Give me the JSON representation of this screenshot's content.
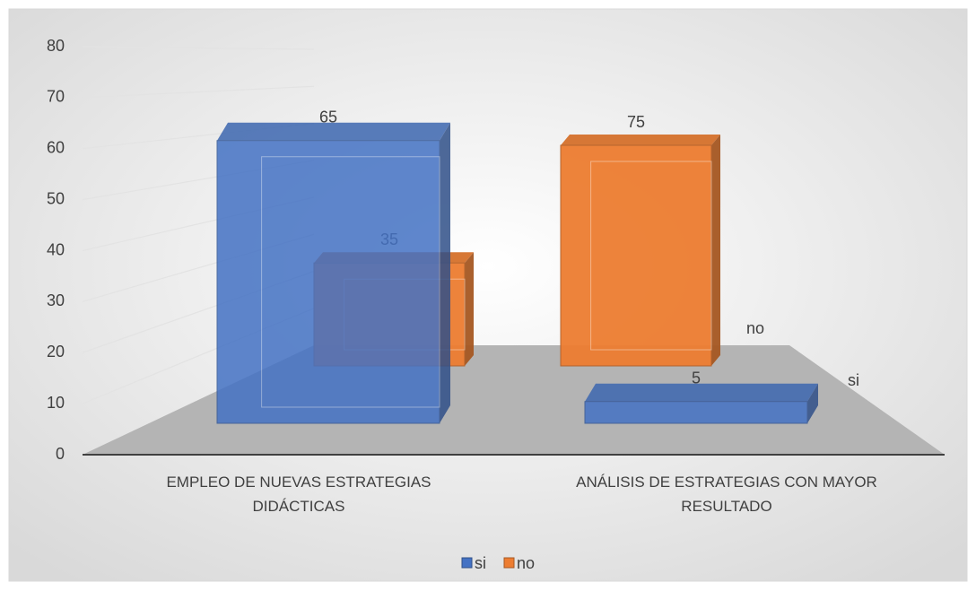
{
  "chart_data": {
    "type": "bar3d",
    "categories": [
      "EMPLEO DE NUEVAS ESTRATEGIAS DIDÁCTICAS",
      "ANÁLISIS DE ESTRATEGIAS CON MAYOR RESULTADO"
    ],
    "series": [
      {
        "name": "si",
        "color": "#4472c4",
        "values": [
          65,
          5
        ]
      },
      {
        "name": "no",
        "color": "#ed7d31",
        "values": [
          35,
          75
        ]
      }
    ],
    "ylim": [
      0,
      80
    ],
    "yticks": [
      0,
      10,
      20,
      30,
      40,
      50,
      60,
      70,
      80
    ],
    "grid": true,
    "legend": "bottom"
  }
}
